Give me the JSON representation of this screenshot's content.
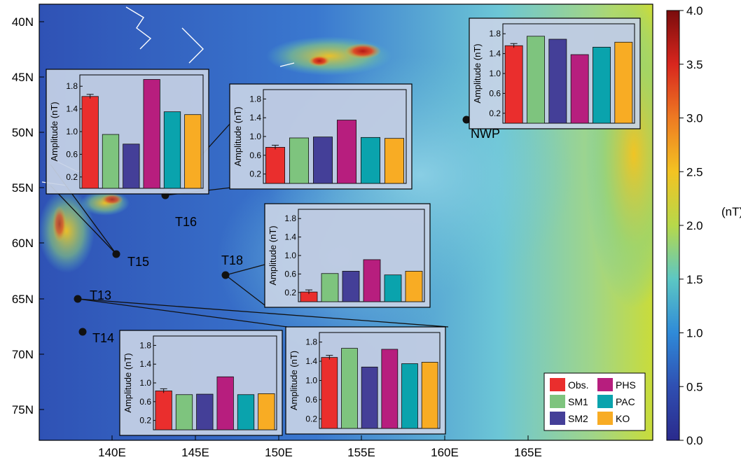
{
  "map": {
    "lat_ticks": [
      "40N",
      "45N",
      "50N",
      "55N",
      "60N",
      "65N",
      "70N",
      "75N"
    ],
    "lon_ticks": [
      "140E",
      "145E",
      "150E",
      "155E",
      "160E",
      "165E"
    ],
    "stations": [
      "NWP",
      "T16",
      "T15",
      "T18",
      "T13",
      "T14"
    ]
  },
  "colorbar": {
    "ticks": [
      "4.0",
      "3.5",
      "3.0",
      "2.5",
      "2.0",
      "1.5",
      "1.0",
      "0.5",
      "0.0"
    ],
    "unit": "(nT)",
    "colors": [
      "#7a0c0c",
      "#d8261e",
      "#ee7a22",
      "#f3c322",
      "#b7d84a",
      "#5cc7c4",
      "#2f8ad8",
      "#2f4fb2",
      "#2a2a8c"
    ]
  },
  "legend": {
    "entries": [
      {
        "label": "Obs.",
        "color": "#ea2e2d"
      },
      {
        "label": "PHS",
        "color": "#b71e7e"
      },
      {
        "label": "SM1",
        "color": "#7ec47e"
      },
      {
        "label": "PAC",
        "color": "#0aa3ad"
      },
      {
        "label": "SM2",
        "color": "#443f98"
      },
      {
        "label": "KO",
        "color": "#f8ac24"
      }
    ]
  },
  "chart_data": {
    "type": "bar",
    "categories": [
      "Obs.",
      "SM1",
      "SM2",
      "PHS",
      "PAC",
      "KO"
    ],
    "ylabel": "Amplitude (nT)",
    "yticks": [
      "0.2",
      "0.6",
      "1.0",
      "1.4",
      "1.8"
    ],
    "ylim": [
      0,
      2.0
    ],
    "insets": [
      {
        "station": "NWP",
        "values": [
          1.56,
          1.75,
          1.69,
          1.38,
          1.53,
          1.63
        ]
      },
      {
        "station": "T15",
        "values": [
          1.62,
          0.95,
          0.78,
          1.92,
          1.35,
          1.3
        ]
      },
      {
        "station": "T16",
        "values": [
          0.77,
          0.97,
          0.99,
          1.35,
          0.98,
          0.96
        ]
      },
      {
        "station": "T18",
        "values": [
          0.21,
          0.61,
          0.66,
          0.91,
          0.58,
          0.66
        ]
      },
      {
        "station": "T14",
        "values": [
          0.83,
          0.75,
          0.76,
          1.13,
          0.75,
          0.77
        ]
      },
      {
        "station": "T13",
        "values": [
          1.48,
          1.67,
          1.28,
          1.65,
          1.35,
          1.38
        ]
      }
    ]
  }
}
